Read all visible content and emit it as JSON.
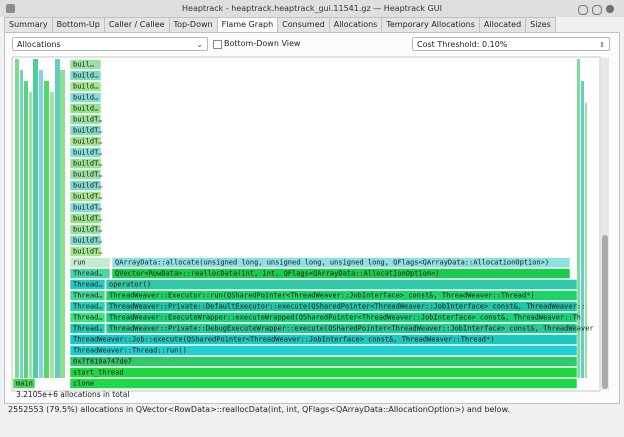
{
  "window": {
    "title": "Heaptrack - heaptrack.heaptrack_gui.11541.gz — Heaptrack GUI"
  },
  "tabs": [
    "Summary",
    "Bottom-Up",
    "Caller / Callee",
    "Top-Down",
    "Flame Graph",
    "Consumed",
    "Allocations",
    "Temporary Allocations",
    "Allocated",
    "Sizes"
  ],
  "toolbar": {
    "cost_type": "Allocations",
    "bottom_down_label": "Bottom-Down View",
    "threshold": "Cost Threshold: 0.10%"
  },
  "flame_graph": {
    "rows": [
      [
        "main",
        "clone"
      ],
      [
        "start_thread"
      ],
      [
        "0x7f819a747de7"
      ],
      [
        "ThreadWeaver::Thread::run()"
      ],
      [
        "ThreadWeaver::Job::execute(QSharedPointer<ThreadWeaver::JobInterface> const&, ThreadWeaver::Thread*)"
      ],
      [
        "Thread…",
        "ThreadWeaver::Private::DebugExecuteWrapper::execute(QSharedPointer<ThreadWeaver::JobInterface> const&, ThreadWeaver"
      ],
      [
        "Thread…",
        "ThreadWeaver::ExecuteWrapper::executeWrapped(QSharedPointer<ThreadWeaver::JobInterface> const&, ThreadWeaver::Th"
      ],
      [
        "Thread…",
        "ThreadWeaver::Private::DefaultExecutor::execute(QSharedPointer<ThreadWeaver::JobInterface> const&, ThreadWeaver::"
      ],
      [
        "Thread…",
        "ThreadWeaver::Executor::run(QSharedPointer<ThreadWeaver::JobInterface> const&, ThreadWeaver::Thread*)"
      ],
      [
        "Thread…",
        "operator()"
      ],
      [
        "Thread…",
        "QVector<RowData>::reallocData(int, int, QFlags<QArrayData::AllocationOption>)"
      ],
      [
        "run",
        "QArrayData::allocate(unsigned long, unsigned long, unsigned long, QFlags<QArrayData::AllocationOption>)"
      ],
      [
        "buildT…"
      ],
      [
        "buildT…"
      ],
      [
        "buildT…"
      ],
      [
        "buildT…"
      ],
      [
        "buildT…"
      ],
      [
        "buildT…"
      ],
      [
        "buildT…"
      ],
      [
        "buildT…"
      ],
      [
        "buildT…"
      ],
      [
        "buildT…"
      ],
      [
        "buildT…"
      ],
      [
        "buildT…"
      ],
      [
        "buildT…"
      ],
      [
        "build…"
      ],
      [
        "build…"
      ],
      [
        "build…"
      ],
      [
        "build…"
      ],
      [
        "buil…"
      ]
    ]
  },
  "total": "3.2105e+6 allocations in total",
  "status": "2552553 (79.5%) allocations in QVector<RowData>::reallocData(int, int, QFlags<QArrayData::AllocationOption>) and below."
}
